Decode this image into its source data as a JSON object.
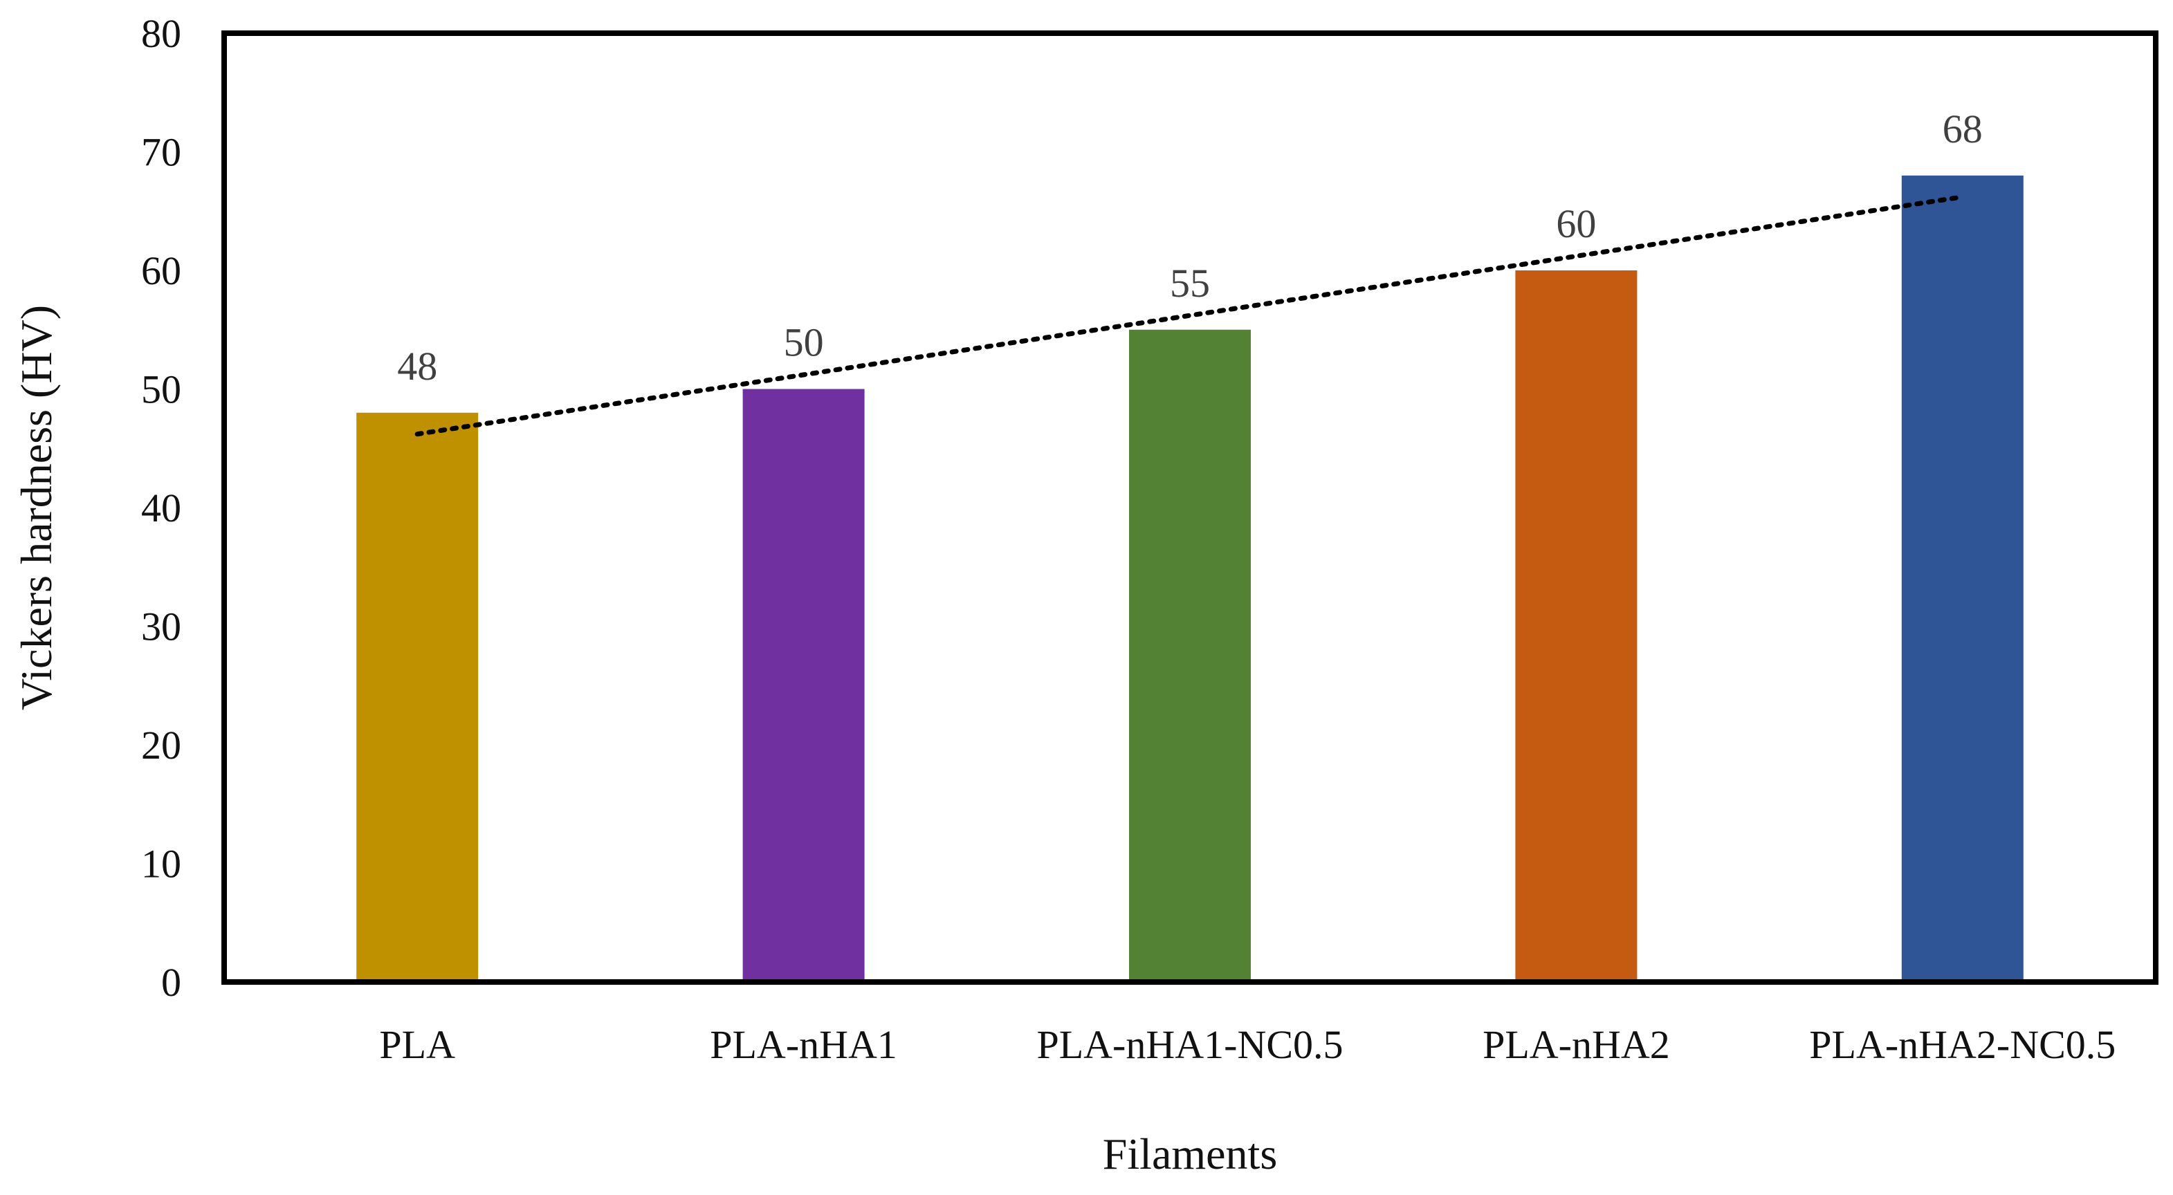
{
  "chart_data": {
    "type": "bar",
    "title": "",
    "xlabel": "Filaments",
    "ylabel": "Vickers hardness (HV)",
    "ylim": [
      0,
      80
    ],
    "y_ticks": [
      0,
      10,
      20,
      30,
      40,
      50,
      60,
      70,
      80
    ],
    "categories": [
      "PLA",
      "PLA-nHA1",
      "PLA-nHA1-NC0.5",
      "PLA-nHA2",
      "PLA-nHA2-NC0.5"
    ],
    "values": [
      48,
      50,
      55,
      60,
      68
    ],
    "data_labels": [
      "48",
      "50",
      "55",
      "60",
      "68"
    ],
    "bar_colors": [
      "#BF9000",
      "#7030A0",
      "#548235",
      "#C55A11",
      "#2F5597"
    ],
    "trendline": {
      "type": "linear",
      "style": "dotted",
      "color": "#000000",
      "start_value": 46.2,
      "end_value": 66.2
    },
    "grid": false,
    "legend": "none"
  }
}
